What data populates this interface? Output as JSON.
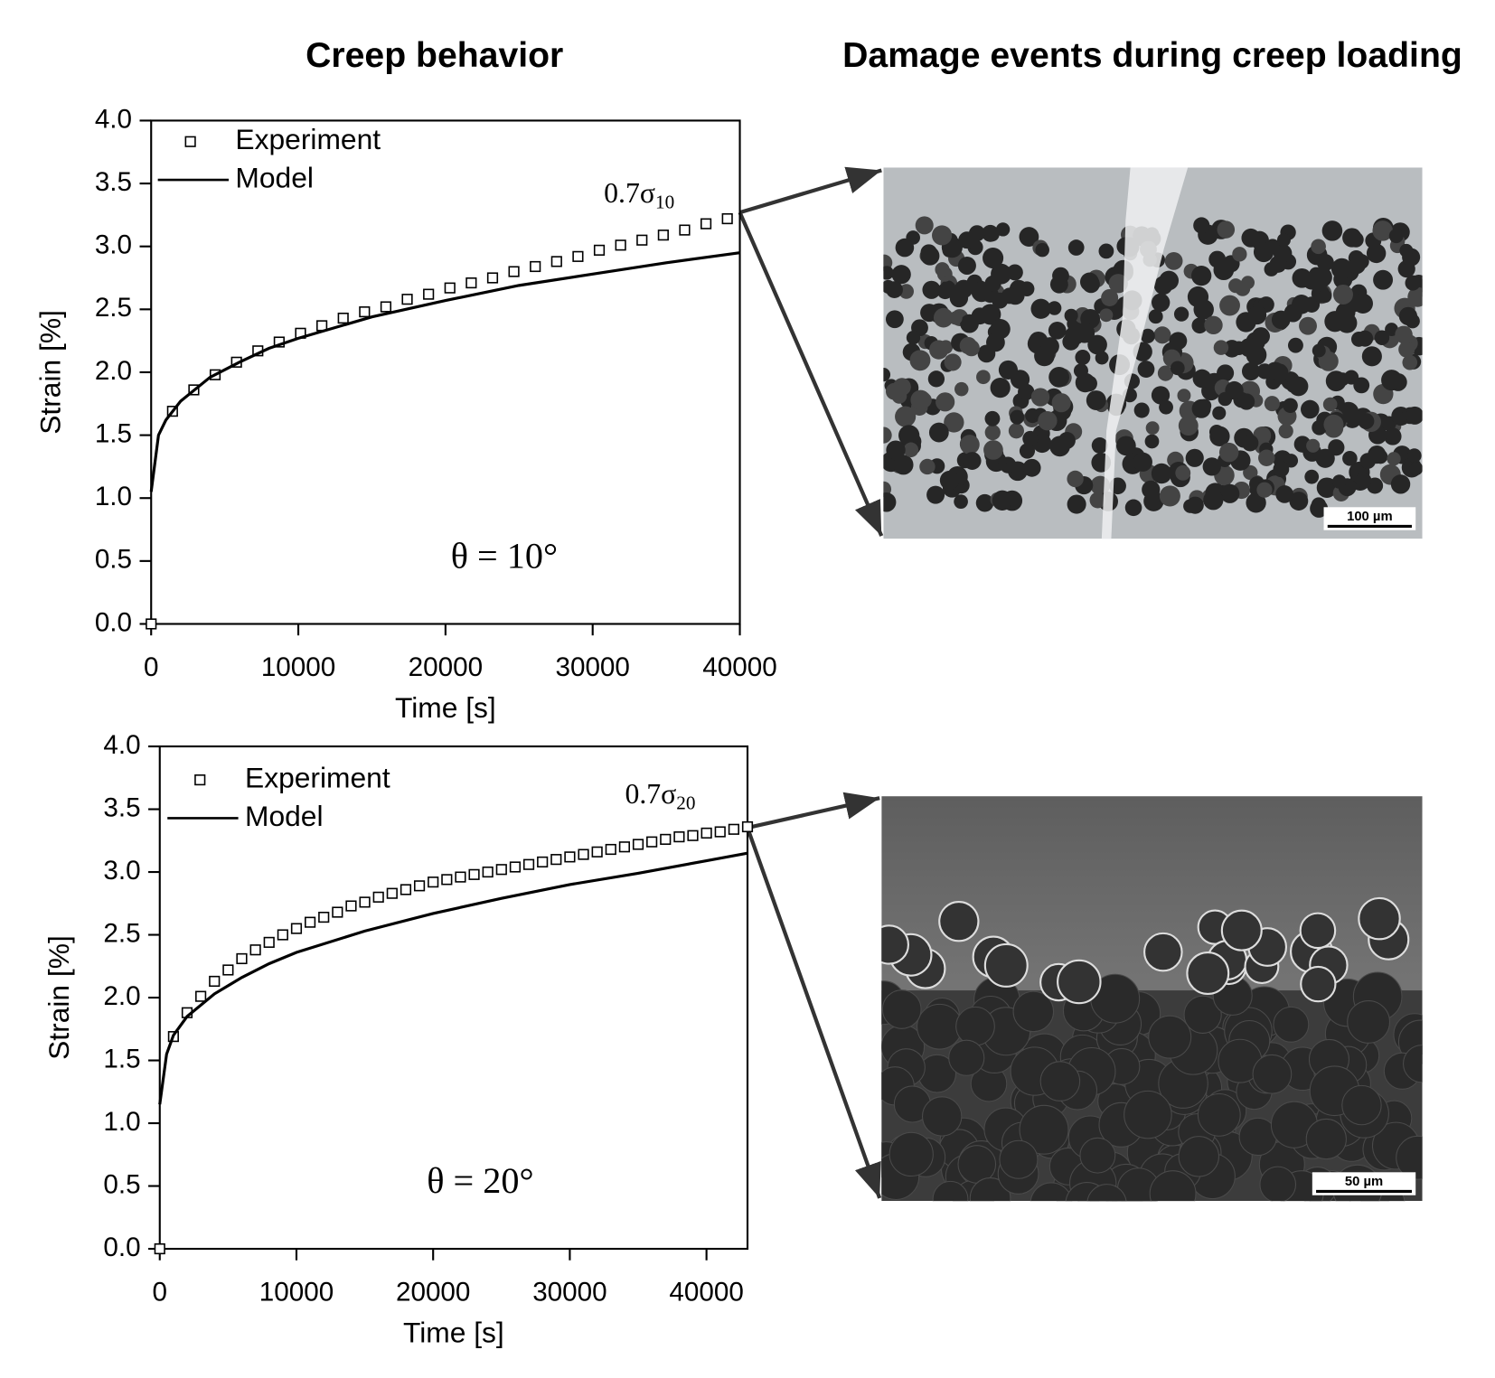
{
  "headers": [
    "Creep behavior",
    "Damage events during creep loading"
  ],
  "images": [
    {
      "scale_bar": "100 µm"
    },
    {
      "scale_bar": "50 µm"
    }
  ],
  "chart_data": [
    {
      "type": "line",
      "xlabel": "Time [s]",
      "ylabel": "Strain [%]",
      "xlim": [
        0,
        40000
      ],
      "ylim": [
        0,
        4
      ],
      "xticks": [
        0,
        10000,
        20000,
        30000,
        40000
      ],
      "yticks": [
        {
          "value": 0,
          "label": "0.0"
        },
        0.5,
        {
          "value": 1,
          "label": "1.0"
        },
        1.5,
        {
          "value": 2,
          "label": "2.0"
        },
        2.5,
        {
          "value": 3,
          "label": "3.0"
        },
        3.5,
        {
          "value": 4,
          "label": "4.0"
        }
      ],
      "legend": "upper left",
      "annotations": [
        {
          "text": "0.7σ",
          "subscript": "10"
        },
        {
          "text": "θ = 10°"
        }
      ],
      "series": [
        {
          "name": "Experiment",
          "style": "markers",
          "color": "#000000",
          "x": [
            0,
            1450,
            2900,
            4350,
            5800,
            7250,
            8700,
            10150,
            11600,
            13050,
            14500,
            15950,
            17400,
            18850,
            20300,
            21750,
            23200,
            24650,
            26100,
            27550,
            29000,
            30450,
            31900,
            33350,
            34800,
            36250,
            37700,
            39150
          ],
          "values": [
            0,
            1.69,
            1.86,
            1.98,
            2.08,
            2.17,
            2.24,
            2.31,
            2.37,
            2.43,
            2.48,
            2.52,
            2.58,
            2.62,
            2.67,
            2.71,
            2.75,
            2.8,
            2.84,
            2.88,
            2.92,
            2.97,
            3.01,
            3.05,
            3.09,
            3.13,
            3.18,
            3.22
          ]
        },
        {
          "name": "Model",
          "style": "line",
          "color": "#000000",
          "x": [
            0,
            500,
            1000,
            2000,
            4000,
            6000,
            8000,
            10000,
            15000,
            20000,
            25000,
            30000,
            35000,
            40000
          ],
          "values": [
            1.05,
            1.5,
            1.62,
            1.77,
            1.96,
            2.08,
            2.19,
            2.27,
            2.44,
            2.57,
            2.69,
            2.78,
            2.87,
            2.95
          ]
        }
      ]
    },
    {
      "type": "line",
      "xlabel": "Time [s]",
      "ylabel": "Strain [%]",
      "xlim": [
        0,
        43000
      ],
      "ylim": [
        0,
        4
      ],
      "xticks": [
        0,
        10000,
        20000,
        30000,
        40000
      ],
      "yticks": [
        {
          "value": 0,
          "label": "0.0"
        },
        0.5,
        {
          "value": 1,
          "label": "1.0"
        },
        1.5,
        {
          "value": 2,
          "label": "2.0"
        },
        2.5,
        {
          "value": 3,
          "label": "3.0"
        },
        3.5,
        {
          "value": 4,
          "label": "4.0"
        }
      ],
      "legend": "upper left",
      "annotations": [
        {
          "text": "0.7σ",
          "subscript": "20"
        },
        {
          "text": "θ = 20°"
        }
      ],
      "series": [
        {
          "name": "Experiment",
          "style": "markers",
          "color": "#000000",
          "x": [
            0,
            1000,
            2000,
            3000,
            4000,
            5000,
            6000,
            7000,
            8000,
            9000,
            10000,
            11000,
            12000,
            13000,
            14000,
            15000,
            16000,
            17000,
            18000,
            19000,
            20000,
            21000,
            22000,
            23000,
            24000,
            25000,
            26000,
            27000,
            28000,
            29000,
            30000,
            31000,
            32000,
            33000,
            34000,
            35000,
            36000,
            37000,
            38000,
            39000,
            40000,
            41000,
            42000,
            43000
          ],
          "values": [
            0,
            1.69,
            1.88,
            2.01,
            2.13,
            2.22,
            2.31,
            2.38,
            2.44,
            2.5,
            2.55,
            2.6,
            2.64,
            2.68,
            2.73,
            2.76,
            2.8,
            2.83,
            2.86,
            2.89,
            2.92,
            2.94,
            2.96,
            2.98,
            3.0,
            3.02,
            3.04,
            3.06,
            3.08,
            3.1,
            3.12,
            3.14,
            3.16,
            3.18,
            3.2,
            3.22,
            3.24,
            3.26,
            3.28,
            3.29,
            3.31,
            3.32,
            3.34,
            3.36
          ]
        },
        {
          "name": "Model",
          "style": "line",
          "color": "#000000",
          "x": [
            0,
            500,
            1000,
            2000,
            4000,
            6000,
            8000,
            10000,
            15000,
            20000,
            25000,
            30000,
            35000,
            40000,
            43000
          ],
          "values": [
            1.15,
            1.55,
            1.7,
            1.85,
            2.03,
            2.16,
            2.27,
            2.36,
            2.53,
            2.67,
            2.79,
            2.9,
            2.99,
            3.09,
            3.15
          ]
        }
      ]
    }
  ]
}
